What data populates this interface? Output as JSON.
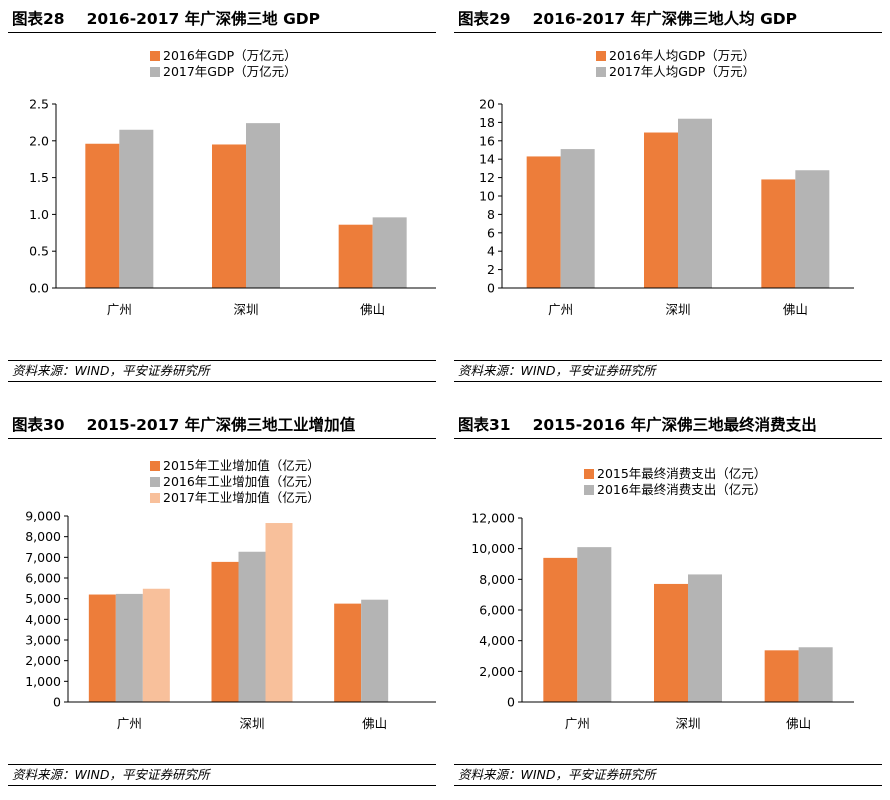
{
  "charts": [
    {
      "fig": "图表28",
      "title": "2016-2017 年广深佛三地 GDP",
      "source": "资料来源：WIND，平安证券研究所"
    },
    {
      "fig": "图表29",
      "title": "2016-2017 年广深佛三地人均 GDP",
      "source": "资料来源：WIND，平安证券研究所"
    },
    {
      "fig": "图表30",
      "title": "2015-2017 年广深佛三地工业增加值",
      "source": "资料来源：WIND，平安证券研究所"
    },
    {
      "fig": "图表31",
      "title": "2015-2016 年广深佛三地最终消费支出",
      "source": "资料来源：WIND，平安证券研究所"
    }
  ],
  "chart_data": [
    {
      "type": "bar",
      "title": "2016-2017 年广深佛三地 GDP",
      "categories": [
        "广州",
        "深圳",
        "佛山"
      ],
      "series": [
        {
          "name": "2016年GDP（万亿元）",
          "values": [
            1.96,
            1.95,
            0.86
          ],
          "color": "#ED7D3A"
        },
        {
          "name": "2017年GDP（万亿元）",
          "values": [
            2.15,
            2.24,
            0.96
          ],
          "color": "#B4B4B4"
        }
      ],
      "ylim": [
        0,
        2.5
      ],
      "yticks": [
        "0.0",
        "0.5",
        "1.0",
        "1.5",
        "2.0",
        "2.5"
      ],
      "legend": "top-center",
      "grid": false
    },
    {
      "type": "bar",
      "title": "2016-2017 年广深佛三地人均 GDP",
      "categories": [
        "广州",
        "深圳",
        "佛山"
      ],
      "series": [
        {
          "name": "2016年人均GDP（万元）",
          "values": [
            14.3,
            16.9,
            11.8
          ],
          "color": "#ED7D3A"
        },
        {
          "name": "2017年人均GDP（万元）",
          "values": [
            15.1,
            18.4,
            12.8
          ],
          "color": "#B4B4B4"
        }
      ],
      "ylim": [
        0,
        20
      ],
      "yticks": [
        "0",
        "2",
        "4",
        "6",
        "8",
        "10",
        "12",
        "14",
        "16",
        "18",
        "20"
      ],
      "legend": "top-center",
      "grid": false
    },
    {
      "type": "bar",
      "title": "2015-2017 年广深佛三地工业增加值",
      "categories": [
        "广州",
        "深圳",
        "佛山"
      ],
      "series": [
        {
          "name": "2015年工业增加值（亿元）",
          "values": [
            5200,
            6780,
            4760
          ],
          "color": "#ED7D3A"
        },
        {
          "name": "2016年工业增加值（亿元）",
          "values": [
            5230,
            7270,
            4950
          ],
          "color": "#B4B4B4"
        },
        {
          "name": "2017年工业增加值（亿元）",
          "values": [
            5480,
            8660,
            null
          ],
          "color": "#F8C09B"
        }
      ],
      "ylim": [
        0,
        9000
      ],
      "yticks": [
        "0",
        "1,000",
        "2,000",
        "3,000",
        "4,000",
        "5,000",
        "6,000",
        "7,000",
        "8,000",
        "9,000"
      ],
      "legend": "top-center",
      "grid": false
    },
    {
      "type": "bar",
      "title": "2015-2016 年广深佛三地最终消费支出",
      "categories": [
        "广州",
        "深圳",
        "佛山"
      ],
      "series": [
        {
          "name": "2015年最终消费支出（亿元）",
          "values": [
            9400,
            7700,
            3370
          ],
          "color": "#ED7D3A"
        },
        {
          "name": "2016年最终消费支出（亿元）",
          "values": [
            10100,
            8320,
            3570
          ],
          "color": "#B4B4B4"
        }
      ],
      "ylim": [
        0,
        12000
      ],
      "yticks": [
        "0",
        "2,000",
        "4,000",
        "6,000",
        "8,000",
        "10,000",
        "12,000"
      ],
      "legend": "top-center",
      "grid": false
    }
  ]
}
